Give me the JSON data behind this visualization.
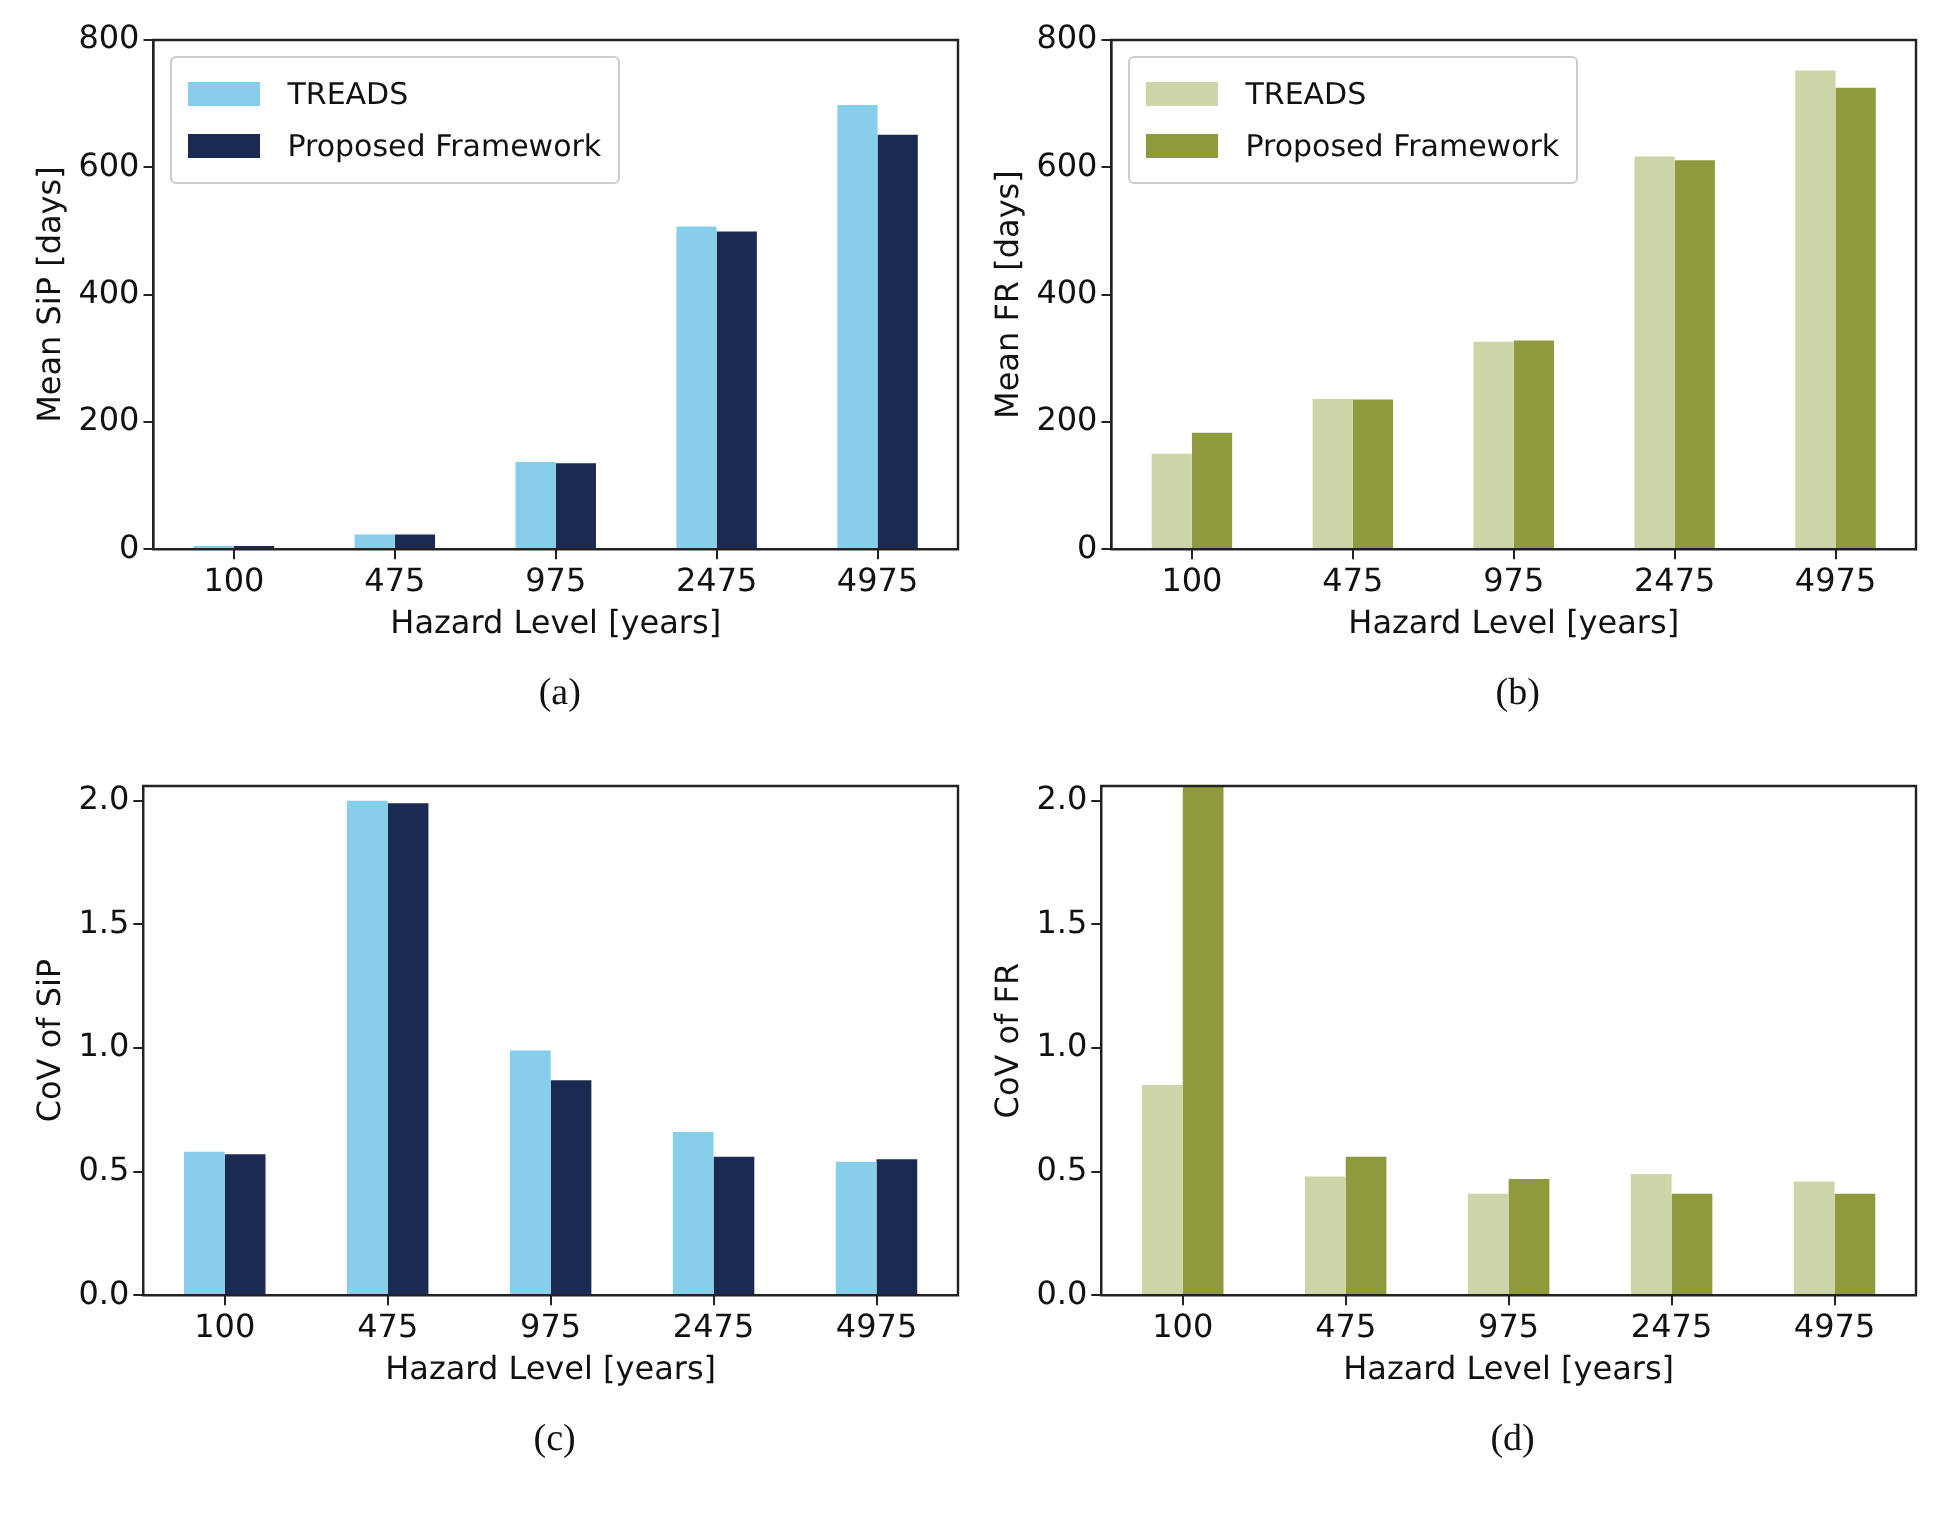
{
  "chart_data": [
    {
      "type": "bar",
      "xlabel": "Hazard Level [years]",
      "ylabel": "Mean SiP [days]",
      "categories": [
        "100",
        "475",
        "975",
        "2475",
        "4975"
      ],
      "series": [
        {
          "name": "TREADS",
          "color": "#87ceeb",
          "values": [
            5,
            23,
            137,
            507,
            698
          ]
        },
        {
          "name": "Proposed Framework",
          "color": "#1a2a52",
          "values": [
            5,
            23,
            135,
            499,
            651
          ]
        }
      ],
      "ylim": [
        0,
        800
      ],
      "yticks": [
        0,
        200,
        400,
        600,
        800
      ],
      "legend": "top left",
      "annotations": [
        "(a)"
      ]
    },
    {
      "type": "bar",
      "xlabel": "Hazard Level [years]",
      "ylabel": "Mean FR [days]",
      "categories": [
        "100",
        "475",
        "975",
        "2475",
        "4975"
      ],
      "series": [
        {
          "name": "TREADS",
          "color": "#cbd5a8",
          "values": [
            150,
            236,
            326,
            617,
            752
          ]
        },
        {
          "name": "Proposed Framework",
          "color": "#8f9a3e",
          "values": [
            183,
            235,
            328,
            611,
            725
          ]
        }
      ],
      "ylim": [
        0,
        800
      ],
      "yticks": [
        0,
        200,
        400,
        600,
        800
      ],
      "legend": "top left",
      "annotations": [
        "(b)"
      ]
    },
    {
      "type": "bar",
      "xlabel": "Hazard Level [years]",
      "ylabel": "CoV of SiP",
      "categories": [
        "100",
        "475",
        "975",
        "2475",
        "4975"
      ],
      "series": [
        {
          "color": "#87ceeb",
          "values": [
            0.58,
            2.0,
            0.99,
            0.66,
            0.54
          ]
        },
        {
          "color": "#1a2a52",
          "values": [
            0.57,
            1.99,
            0.87,
            0.56,
            0.55
          ]
        }
      ],
      "ylim": [
        0,
        2.06
      ],
      "yticks": [
        {
          "value": 0,
          "label": "0.0"
        },
        {
          "value": 0.5,
          "label": "0.5"
        },
        {
          "value": 1,
          "label": "1.0"
        },
        {
          "value": 1.5,
          "label": "1.5"
        },
        {
          "value": 2,
          "label": "2.0"
        }
      ],
      "annotations": [
        "(c)"
      ]
    },
    {
      "type": "bar",
      "xlabel": "Hazard Level [years]",
      "ylabel": "CoV of FR",
      "categories": [
        "100",
        "475",
        "975",
        "2475",
        "4975"
      ],
      "series": [
        {
          "color": "#cbd5a8",
          "values": [
            0.85,
            0.48,
            0.41,
            0.49,
            0.46
          ]
        },
        {
          "color": "#8f9a3e",
          "values": [
            2.06,
            0.56,
            0.47,
            0.41,
            0.41
          ]
        }
      ],
      "ylim": [
        0,
        2.06
      ],
      "yticks": [
        {
          "value": 0,
          "label": "0.0"
        },
        {
          "value": 0.5,
          "label": "0.5"
        },
        {
          "value": 1,
          "label": "1.0"
        },
        {
          "value": 1.5,
          "label": "1.5"
        },
        {
          "value": 2,
          "label": "2.0"
        }
      ],
      "annotations": [
        "(d)"
      ]
    }
  ]
}
